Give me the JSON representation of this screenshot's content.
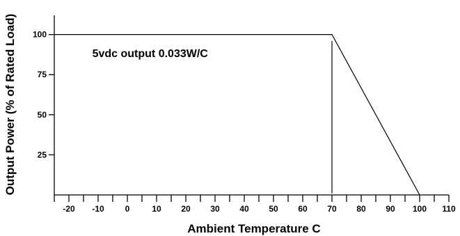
{
  "chart_data": {
    "type": "line",
    "title": "",
    "xlabel": "Ambient Temperature C",
    "ylabel": "Output Power (% of Rated Load)",
    "xlim": [
      -25,
      110
    ],
    "ylim": [
      0,
      112
    ],
    "x_ticks": [
      "-20",
      "-10",
      "0",
      "10",
      "20",
      "30",
      "40",
      "50",
      "60",
      "70",
      "80",
      "90",
      "100",
      "110"
    ],
    "y_ticks": [
      "100",
      "75",
      "50",
      "25"
    ],
    "grid": false,
    "legend": "none",
    "series": [
      {
        "x": [
          -25,
          70,
          100
        ],
        "y": [
          100,
          100,
          0
        ]
      }
    ],
    "reference_line": {
      "x": 70,
      "y_from": 1,
      "y_to": 96
    },
    "annotations": [
      {
        "text": "5vdc output 0.033W/C",
        "x": -12,
        "y": 86
      }
    ]
  }
}
